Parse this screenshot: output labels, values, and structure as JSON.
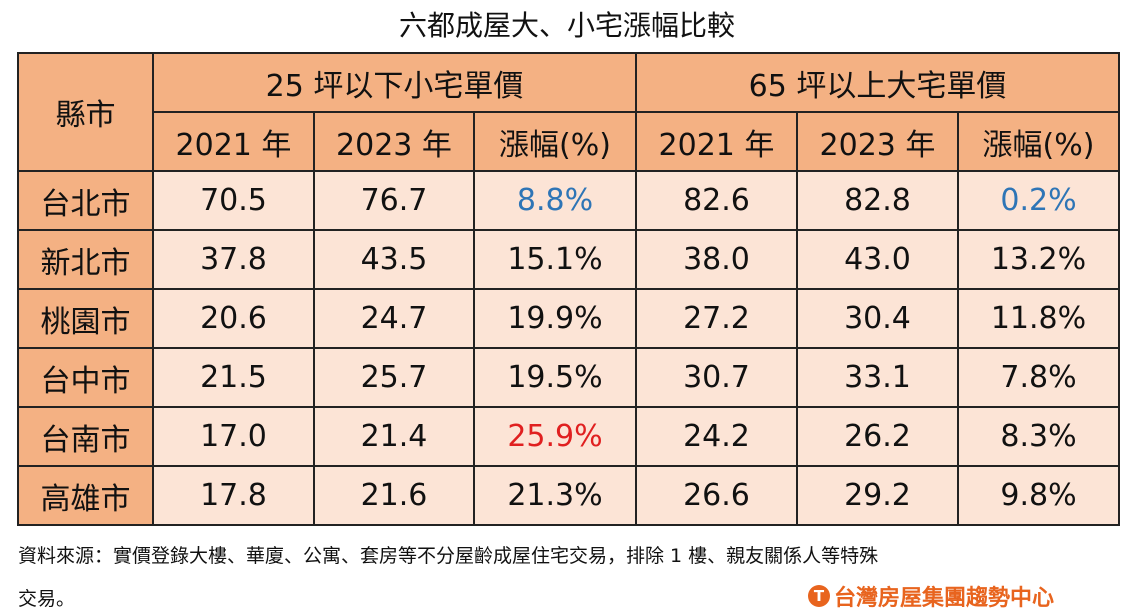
{
  "title": "六都成屋大、小宅漲幅比較",
  "headers": {
    "city": "縣市",
    "small": "25 坪以下小宅單價",
    "large": "65 坪以上大宅單價",
    "y2021": "2021 年",
    "y2023": "2023 年",
    "change": "漲幅(%)"
  },
  "rows": [
    {
      "city": "台北市",
      "s21": "70.5",
      "s23": "76.7",
      "sc": "8.8%",
      "l21": "82.6",
      "l23": "82.8",
      "lc": "0.2%"
    },
    {
      "city": "新北市",
      "s21": "37.8",
      "s23": "43.5",
      "sc": "15.1%",
      "l21": "38.0",
      "l23": "43.0",
      "lc": "13.2%"
    },
    {
      "city": "桃園市",
      "s21": "20.6",
      "s23": "24.7",
      "sc": "19.9%",
      "l21": "27.2",
      "l23": "30.4",
      "lc": "11.8%"
    },
    {
      "city": "台中市",
      "s21": "21.5",
      "s23": "25.7",
      "sc": "19.5%",
      "l21": "30.7",
      "l23": "33.1",
      "lc": "7.8%"
    },
    {
      "city": "台南市",
      "s21": "17.0",
      "s23": "21.4",
      "sc": "25.9%",
      "l21": "24.2",
      "l23": "26.2",
      "lc": "8.3%"
    },
    {
      "city": "高雄市",
      "s21": "17.8",
      "s23": "21.6",
      "sc": "21.3%",
      "l21": "26.6",
      "l23": "29.2",
      "lc": "9.8%"
    }
  ],
  "note_line1": "資料來源：實價登錄大樓、華廈、公寓、套房等不分屋齡成屋住宅交易，排除 1 樓、親友關係人等特殊",
  "note_line2": "交易。",
  "logo": "台灣房屋集團趨勢中心",
  "colors": {
    "header": "#f4b183",
    "cell": "#fce4d6",
    "low": "#2e75b6",
    "high": "#e02020"
  }
}
